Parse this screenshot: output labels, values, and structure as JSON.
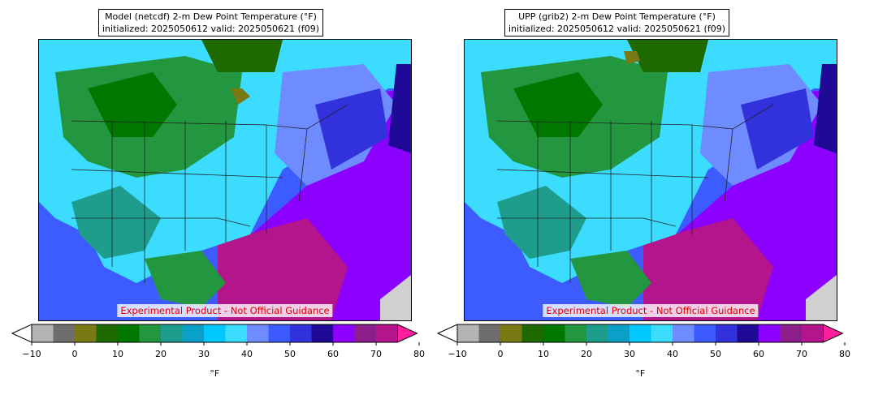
{
  "panels": [
    {
      "title_line1": "Model (netcdf) 2-m Dew Point Temperature (°F)",
      "title_line2": "initialized: 2025050612 valid: 2025050621 (f09)",
      "watermark": "Experimental Product - Not Official Guidance"
    },
    {
      "title_line1": "UPP (grib2) 2-m Dew Point Temperature (°F)",
      "title_line2": "initialized: 2025050612 valid: 2025050621 (f09)",
      "watermark": "Experimental Product - Not Official Guidance"
    }
  ],
  "colorbar": {
    "unit_label": "°F",
    "ticks": [
      "−10",
      "0",
      "10",
      "20",
      "30",
      "40",
      "50",
      "60",
      "70",
      "80"
    ],
    "colors": [
      "#ffffff",
      "#b4b4b4",
      "#6e6e6e",
      "#7a7a14",
      "#1e6a00",
      "#007800",
      "#239640",
      "#1e9c8c",
      "#0aa0c8",
      "#00c8ff",
      "#3cdcff",
      "#6e8cff",
      "#3c5aff",
      "#3232dc",
      "#1e0a96",
      "#8c00ff",
      "#8c1e8c",
      "#b4148c",
      "#ff1e9c"
    ]
  }
}
